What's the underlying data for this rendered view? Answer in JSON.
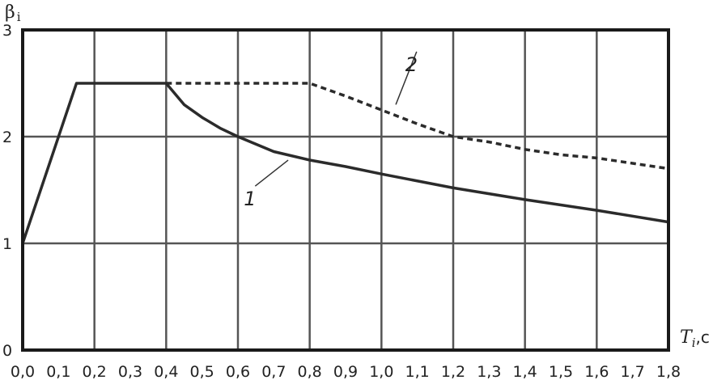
{
  "chart_data": {
    "type": "line",
    "title": "",
    "ylabel": "β",
    "ylabel_sub": "i",
    "xlabel": "T",
    "xlabel_sub": "i",
    "xlabel_unit": ",c",
    "xlim": [
      0,
      1.8
    ],
    "ylim": [
      0,
      3
    ],
    "grid": true,
    "x_ticks": [
      0,
      0.1,
      0.2,
      0.3,
      0.4,
      0.5,
      0.6,
      0.7,
      0.8,
      0.9,
      1.0,
      1.1,
      1.2,
      1.3,
      1.4,
      1.5,
      1.6,
      1.7,
      1.8
    ],
    "x_tick_labels": [
      "0,0",
      "0,1",
      "0,2",
      "0,3",
      "0,4",
      "0,5",
      "0,6",
      "0,7",
      "0,8",
      "0,9",
      "1,0",
      "1,1",
      "1,2",
      "1,3",
      "1,4",
      "1,5",
      "1,6",
      "1,7",
      "1,8"
    ],
    "y_ticks": [
      0,
      1,
      2,
      3
    ],
    "y_tick_labels": [
      "0",
      "1",
      "2",
      "3"
    ],
    "series": [
      {
        "name": "1",
        "style": "solid",
        "color": "#2b2b2b",
        "x": [
          0.0,
          0.15,
          0.4,
          0.45,
          0.5,
          0.55,
          0.6,
          0.7,
          0.8,
          0.9,
          1.0,
          1.2,
          1.4,
          1.6,
          1.8
        ],
        "y": [
          1.0,
          2.5,
          2.5,
          2.3,
          2.18,
          2.08,
          2.0,
          1.86,
          1.78,
          1.72,
          1.65,
          1.52,
          1.41,
          1.31,
          1.2
        ]
      },
      {
        "name": "2",
        "style": "dashed",
        "color": "#2b2b2b",
        "x": [
          0.4,
          0.6,
          0.8,
          0.9,
          1.0,
          1.1,
          1.2,
          1.3,
          1.4,
          1.5,
          1.6,
          1.7,
          1.8
        ],
        "y": [
          2.5,
          2.5,
          2.5,
          2.38,
          2.25,
          2.12,
          2.0,
          1.95,
          1.88,
          1.83,
          1.8,
          1.75,
          1.7
        ]
      }
    ],
    "annotations": [
      {
        "text": "1",
        "x": 0.63,
        "y": 1.4,
        "leader_to": [
          0.74,
          1.78
        ]
      },
      {
        "text": "2",
        "x": 1.08,
        "y": 2.66,
        "leader_to": [
          1.04,
          2.3
        ]
      }
    ]
  }
}
